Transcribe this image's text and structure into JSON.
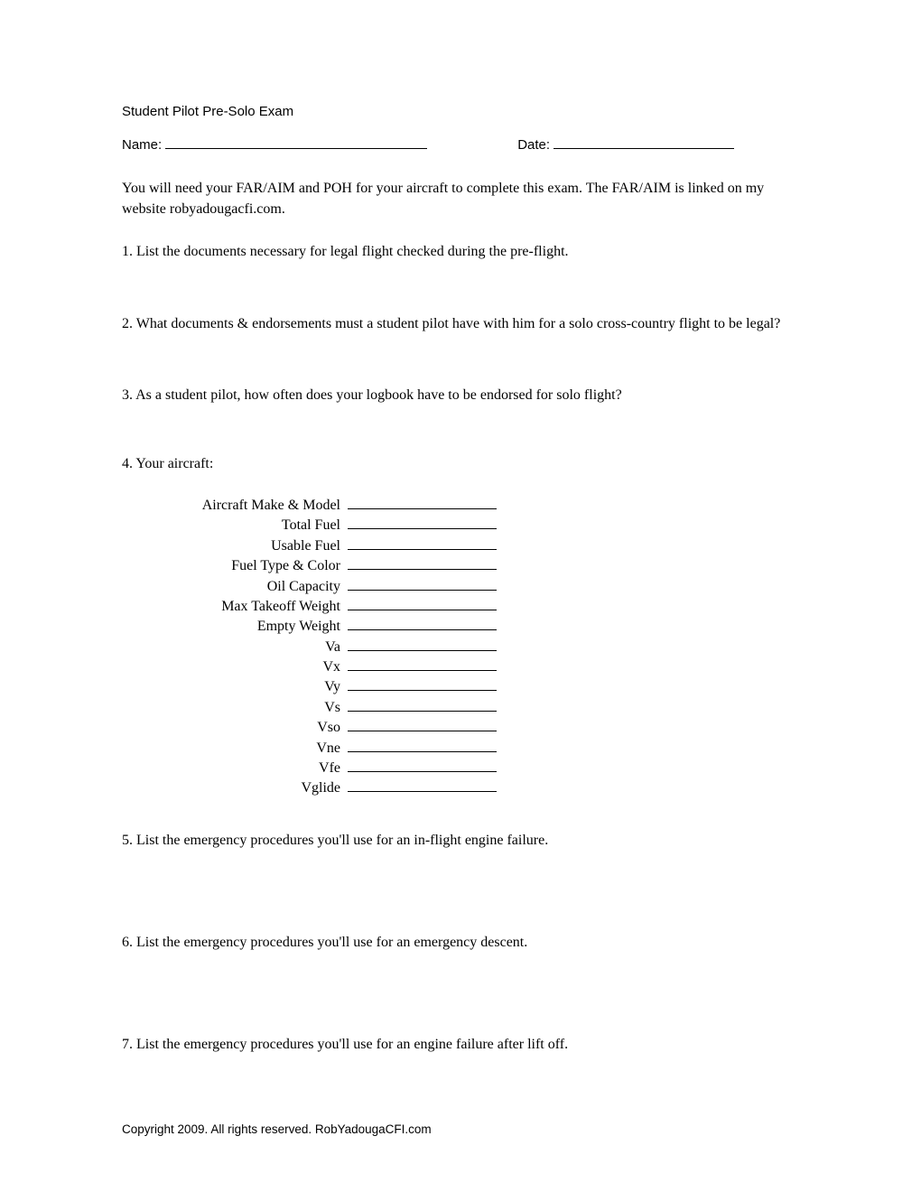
{
  "header": {
    "title": "Student Pilot Pre-Solo Exam",
    "name_label": "Name:",
    "date_label": "Date:"
  },
  "intro": "You will need your FAR/AIM and POH for your aircraft to complete this exam.  The FAR/AIM is linked on my website robyadougacfi.com.",
  "questions": {
    "q1": "1. List the documents necessary for legal flight checked during the pre-flight.",
    "q2": "2. What documents & endorsements must a student pilot have with him for a solo cross-country flight to be legal?",
    "q3": "3. As a student pilot, how often does your logbook have to be endorsed for solo flight?",
    "q4": "4. Your aircraft:",
    "q5": "5. List the emergency procedures you'll use for an in-flight engine failure.",
    "q6": "6. List the emergency procedures you'll use for an emergency descent.",
    "q7": "7. List the emergency procedures you'll use for an engine failure after lift off."
  },
  "aircraft_fields": [
    "Aircraft Make & Model",
    "Total Fuel",
    "Usable Fuel",
    "Fuel Type & Color",
    "Oil Capacity",
    "Max Takeoff Weight",
    "Empty Weight",
    "Va",
    "Vx",
    "Vy",
    "Vs",
    "Vso",
    "Vne",
    "Vfe",
    "Vglide"
  ],
  "footer": "Copyright 2009.  All rights reserved.  RobYadougaCFI.com"
}
